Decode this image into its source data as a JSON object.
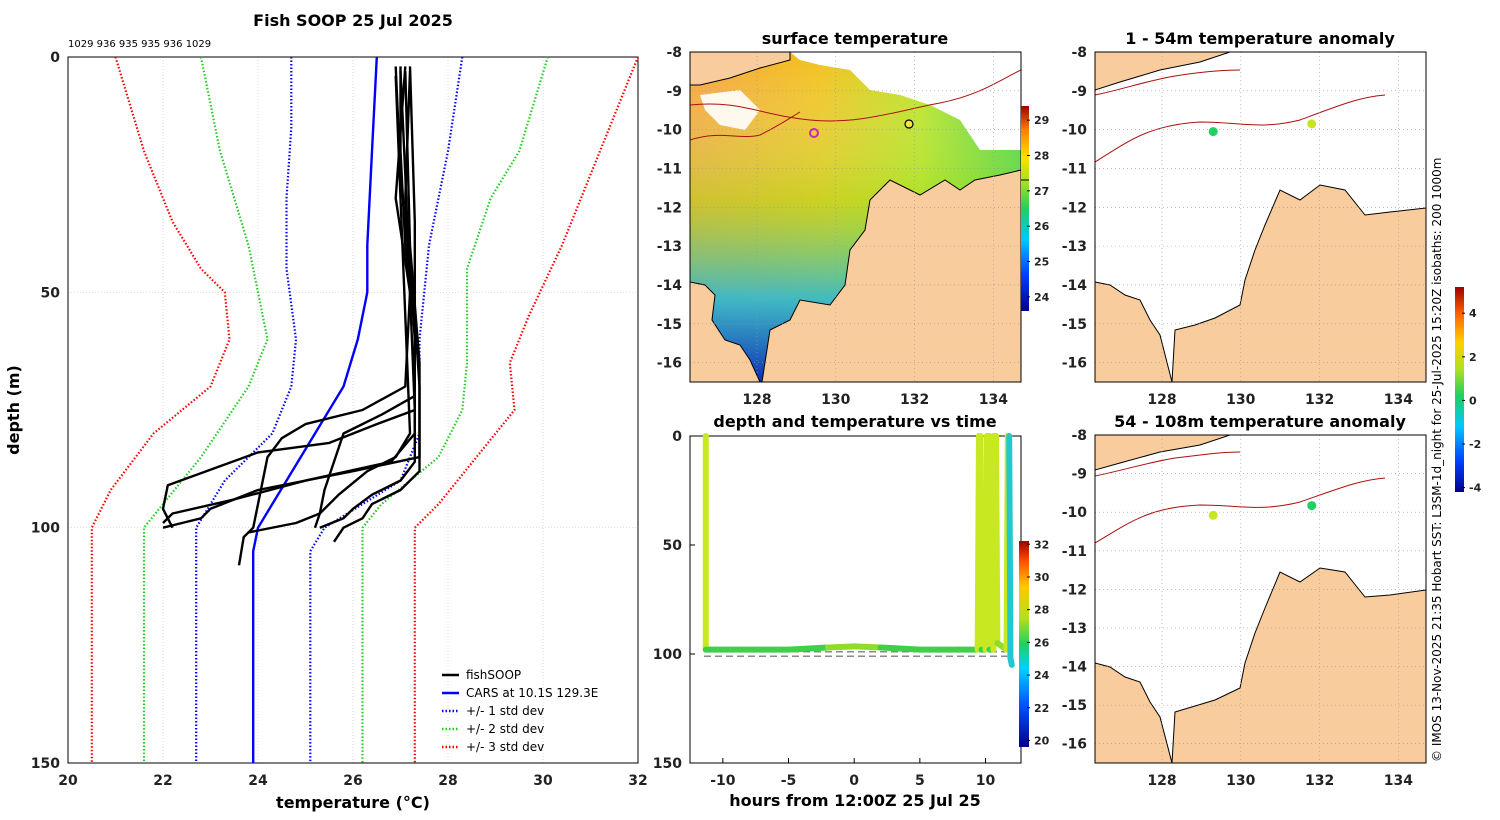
{
  "figure_title": "Fish SOOP 25 Jul 2025",
  "top_counts": "1029 936 935 935 936 1029",
  "credit": "© IMOS 13-Nov-2025 21:35 Hobart SST: L3SM-1d_night for 25-Jul-2025 15:20Z isobaths: 200  1000m",
  "colors": {
    "profiles": "#000000",
    "cars": "#0000ff",
    "std1": "#0000ff",
    "std2": "#22cc22",
    "std3": "#ff0000",
    "land": "#f9cc9d",
    "isobath": "#aa1111"
  },
  "chart_data": [
    {
      "type": "line",
      "id": "profile",
      "title": "Fish SOOP 25 Jul 2025",
      "xlabel": "temperature (°C)",
      "ylabel": "depth (m)",
      "xlim": [
        20,
        32
      ],
      "ylim": [
        150,
        0
      ],
      "xticks": [
        "20",
        "22",
        "24",
        "26",
        "28",
        "30",
        "32"
      ],
      "yticks": [
        "0",
        "50",
        "100",
        "150"
      ],
      "grid": true,
      "legend_position": "bottom-right",
      "legend": [
        "fishSOOP",
        "CARS at 10.1S 129.3E",
        "+/- 1 std dev",
        "+/- 2 std dev",
        "+/- 3 std dev"
      ],
      "series": [
        {
          "name": "CARS at 10.1S 129.3E",
          "style": "solid",
          "points": [
            [
              26.5,
              0
            ],
            [
              26.4,
              20
            ],
            [
              26.3,
              40
            ],
            [
              26.3,
              50
            ],
            [
              26.1,
              60
            ],
            [
              25.8,
              70
            ],
            [
              25.2,
              80
            ],
            [
              24.6,
              90
            ],
            [
              24.0,
              100
            ],
            [
              23.9,
              105
            ],
            [
              23.9,
              150
            ]
          ]
        },
        {
          "name": "-1 std",
          "style": "dotted",
          "points": [
            [
              24.7,
              0
            ],
            [
              24.7,
              15
            ],
            [
              24.6,
              30
            ],
            [
              24.6,
              45
            ],
            [
              24.8,
              60
            ],
            [
              24.7,
              70
            ],
            [
              24.3,
              80
            ],
            [
              23.3,
              90
            ],
            [
              22.7,
              100
            ],
            [
              22.7,
              150
            ]
          ]
        },
        {
          "name": "+1 std",
          "style": "dotted",
          "points": [
            [
              28.3,
              0
            ],
            [
              28.0,
              20
            ],
            [
              27.6,
              40
            ],
            [
              27.4,
              60
            ],
            [
              27.4,
              80
            ],
            [
              27.0,
              90
            ],
            [
              25.4,
              100
            ],
            [
              25.1,
              105
            ],
            [
              25.1,
              150
            ]
          ]
        },
        {
          "name": "-2 std",
          "style": "dotted",
          "points": [
            [
              22.8,
              0
            ],
            [
              23.2,
              20
            ],
            [
              23.8,
              40
            ],
            [
              24.2,
              60
            ],
            [
              23.8,
              70
            ],
            [
              22.8,
              85
            ],
            [
              22.0,
              95
            ],
            [
              21.6,
              100
            ],
            [
              21.6,
              150
            ]
          ]
        },
        {
          "name": "+2 std",
          "style": "dotted",
          "points": [
            [
              30.1,
              0
            ],
            [
              29.5,
              20
            ],
            [
              28.9,
              30
            ],
            [
              28.4,
              45
            ],
            [
              28.4,
              65
            ],
            [
              28.3,
              75
            ],
            [
              27.8,
              85
            ],
            [
              26.6,
              95
            ],
            [
              26.2,
              100
            ],
            [
              26.2,
              150
            ]
          ]
        },
        {
          "name": "-3 std",
          "style": "dotted",
          "points": [
            [
              21.0,
              0
            ],
            [
              21.6,
              20
            ],
            [
              22.2,
              35
            ],
            [
              22.8,
              45
            ],
            [
              23.3,
              50
            ],
            [
              23.4,
              60
            ],
            [
              23.0,
              70
            ],
            [
              21.8,
              80
            ],
            [
              20.9,
              92
            ],
            [
              20.5,
              100
            ],
            [
              20.5,
              150
            ]
          ]
        },
        {
          "name": "+3 std",
          "style": "dotted",
          "points": [
            [
              32.0,
              0
            ],
            [
              31.2,
              20
            ],
            [
              30.4,
              40
            ],
            [
              29.7,
              55
            ],
            [
              29.3,
              65
            ],
            [
              29.4,
              75
            ],
            [
              28.6,
              85
            ],
            [
              27.8,
              95
            ],
            [
              27.3,
              100
            ],
            [
              27.3,
              150
            ]
          ]
        },
        {
          "name": "fishSOOP",
          "style": "solid",
          "points": [
            [
              27.0,
              2
            ],
            [
              27.0,
              20
            ],
            [
              27.1,
              40
            ],
            [
              27.3,
              55
            ],
            [
              27.4,
              70
            ],
            [
              27.4,
              85
            ],
            [
              26.0,
              88
            ],
            [
              24.0,
              92
            ],
            [
              23.0,
              96
            ],
            [
              22.8,
              98
            ],
            [
              22.4,
              99
            ],
            [
              22.0,
              100
            ]
          ]
        },
        {
          "name": "fishSOOP",
          "style": "solid",
          "points": [
            [
              26.9,
              2
            ],
            [
              27.0,
              25
            ],
            [
              27.2,
              45
            ],
            [
              27.3,
              60
            ],
            [
              27.3,
              80
            ],
            [
              26.8,
              86
            ],
            [
              25.0,
              90
            ],
            [
              23.5,
              94
            ],
            [
              22.2,
              97
            ],
            [
              22.0,
              99
            ]
          ]
        },
        {
          "name": "fishSOOP",
          "style": "solid",
          "points": [
            [
              27.1,
              2
            ],
            [
              26.9,
              30
            ],
            [
              27.2,
              50
            ],
            [
              27.3,
              75
            ],
            [
              26.5,
              78
            ],
            [
              25.5,
              82
            ],
            [
              24.0,
              84
            ],
            [
              22.1,
              91
            ],
            [
              22.0,
              96
            ],
            [
              22.2,
              100
            ]
          ]
        },
        {
          "name": "fishSOOP",
          "style": "solid",
          "points": [
            [
              27.0,
              3
            ],
            [
              27.1,
              25
            ],
            [
              27.2,
              50
            ],
            [
              27.1,
              70
            ],
            [
              26.2,
              75
            ],
            [
              25.0,
              78
            ],
            [
              24.5,
              81
            ],
            [
              24.2,
              85
            ],
            [
              24.0,
              95
            ],
            [
              23.9,
              100
            ],
            [
              23.7,
              102
            ],
            [
              23.6,
              108
            ]
          ]
        },
        {
          "name": "fishSOOP",
          "style": "solid",
          "points": [
            [
              27.2,
              3
            ],
            [
              27.1,
              30
            ],
            [
              27.3,
              55
            ],
            [
              27.3,
              72
            ],
            [
              26.6,
              76
            ],
            [
              25.8,
              80
            ],
            [
              25.6,
              86
            ],
            [
              25.4,
              92
            ],
            [
              25.3,
              97
            ],
            [
              25.2,
              100
            ]
          ]
        },
        {
          "name": "fishSOOP",
          "style": "solid",
          "points": [
            [
              26.9,
              4
            ],
            [
              27.0,
              30
            ],
            [
              27.1,
              55
            ],
            [
              27.2,
              80
            ],
            [
              26.9,
              85
            ],
            [
              26.3,
              88
            ],
            [
              25.7,
              93
            ],
            [
              25.3,
              97
            ],
            [
              24.8,
              99
            ],
            [
              23.8,
              101
            ]
          ]
        },
        {
          "name": "fishSOOP",
          "style": "solid",
          "points": [
            [
              27.2,
              2
            ],
            [
              27.3,
              35
            ],
            [
              27.3,
              60
            ],
            [
              27.3,
              86
            ],
            [
              27.0,
              90
            ],
            [
              26.4,
              93
            ],
            [
              26.0,
              96
            ],
            [
              25.8,
              98
            ],
            [
              25.3,
              100
            ]
          ]
        },
        {
          "name": "fishSOOP",
          "style": "solid",
          "points": [
            [
              27.1,
              3
            ],
            [
              27.2,
              40
            ],
            [
              27.4,
              65
            ],
            [
              27.4,
              88
            ],
            [
              27.0,
              92
            ],
            [
              26.4,
              95
            ],
            [
              26.2,
              98
            ],
            [
              25.8,
              100
            ],
            [
              25.6,
              103
            ]
          ]
        }
      ]
    },
    {
      "type": "heatmap",
      "id": "sst_map",
      "title": "surface temperature",
      "xlim": [
        126.3,
        134.7
      ],
      "ylim": [
        -16.5,
        -8
      ],
      "xticks": [
        "128",
        "130",
        "132",
        "134"
      ],
      "yticks": [
        "-8",
        "-9",
        "-10",
        "-11",
        "-12",
        "-13",
        "-14",
        "-15",
        "-16"
      ],
      "colorbar": {
        "min": 23.6,
        "max": 29.4,
        "ticks": [
          "24",
          "25",
          "26",
          "27",
          "28",
          "29"
        ],
        "marker": 27.0
      },
      "markers": [
        {
          "lon": 129.3,
          "lat": -10.1,
          "color": "#cc22cc"
        },
        {
          "lon": 131.8,
          "lat": -9.8,
          "color": "#000000"
        }
      ]
    },
    {
      "type": "scatter",
      "id": "anom_shallow",
      "title": "1 - 54m temperature anomaly",
      "xlim": [
        126.3,
        134.7
      ],
      "ylim": [
        -16.5,
        -8
      ],
      "xticks": [
        "128",
        "130",
        "132",
        "134"
      ],
      "yticks": [
        "-8",
        "-9",
        "-10",
        "-11",
        "-12",
        "-13",
        "-14",
        "-15",
        "-16"
      ],
      "points": [
        {
          "lon": 129.3,
          "lat": -10.05,
          "anomaly": 0.4
        },
        {
          "lon": 131.8,
          "lat": -9.85,
          "anomaly": 1.3
        }
      ]
    },
    {
      "type": "scatter",
      "id": "anom_deep",
      "title": "54 - 108m temperature anomaly",
      "xlim": [
        126.3,
        134.7
      ],
      "ylim": [
        -16.5,
        -8
      ],
      "xticks": [
        "128",
        "130",
        "132",
        "134"
      ],
      "yticks": [
        "-8",
        "-9",
        "-10",
        "-11",
        "-12",
        "-13",
        "-14",
        "-15",
        "-16"
      ],
      "points": [
        {
          "lon": 129.3,
          "lat": -10.08,
          "anomaly": 1.3
        },
        {
          "lon": 131.8,
          "lat": -9.83,
          "anomaly": 0.5
        }
      ],
      "colorbar": {
        "min": -4.2,
        "max": 5.2,
        "ticks": [
          "-4",
          "-2",
          "0",
          "2",
          "4"
        ]
      }
    },
    {
      "type": "line",
      "id": "depth_time",
      "title": "depth and temperature vs time",
      "xlabel": "hours from 12:00Z 25 Jul 25",
      "xlim": [
        -12.5,
        12.7
      ],
      "ylim": [
        150,
        0
      ],
      "xticks": [
        "-10",
        "-5",
        "0",
        "5",
        "10"
      ],
      "yticks": [
        "0",
        "50",
        "100",
        "150"
      ],
      "colorbar": {
        "min": 19.6,
        "max": 32.2,
        "ticks": [
          "20",
          "22",
          "24",
          "26",
          "28",
          "30",
          "32"
        ]
      },
      "reference_depths": [
        99,
        101
      ],
      "track": [
        [
          -11.3,
          0
        ],
        [
          -11.3,
          98
        ],
        [
          -11.0,
          98
        ],
        [
          -8,
          98
        ],
        [
          -5,
          98
        ],
        [
          -2,
          97
        ],
        [
          0,
          96.5
        ],
        [
          2,
          97
        ],
        [
          5,
          98
        ],
        [
          8,
          98
        ],
        [
          9.4,
          98
        ],
        [
          9.5,
          0
        ],
        [
          9.6,
          0
        ],
        [
          9.7,
          98
        ],
        [
          10.0,
          98
        ],
        [
          10.1,
          0
        ],
        [
          10.3,
          0
        ],
        [
          10.3,
          98
        ],
        [
          10.6,
          98
        ],
        [
          10.6,
          0
        ],
        [
          10.8,
          0
        ],
        [
          10.9,
          95
        ],
        [
          11.6,
          98
        ],
        [
          11.7,
          0
        ],
        [
          11.8,
          0
        ],
        [
          11.9,
          102
        ],
        [
          12.0,
          105
        ]
      ]
    }
  ]
}
